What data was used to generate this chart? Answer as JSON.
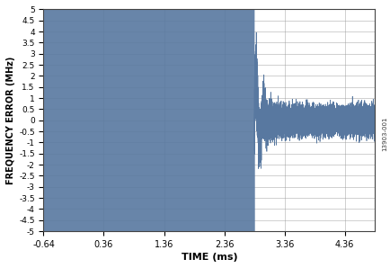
{
  "title": "",
  "xlabel": "TIME (ms)",
  "ylabel": "FREQUENCY ERROR (MHz)",
  "xlim": [
    -0.64,
    4.86
  ],
  "ylim": [
    -5.0,
    5.0
  ],
  "xticks": [
    -0.64,
    0.36,
    1.36,
    2.36,
    3.36,
    4.36
  ],
  "yticks": [
    -5.0,
    -4.5,
    -4.0,
    -3.5,
    -3.0,
    -2.5,
    -2.0,
    -1.5,
    -1.0,
    -0.5,
    0,
    0.5,
    1.0,
    1.5,
    2.0,
    2.5,
    3.0,
    3.5,
    4.0,
    4.5,
    5.0
  ],
  "line_color": "#5878a0",
  "lock_time": 2.86,
  "pre_lock_freq": 400,
  "pre_lock_amplitude": 5.0,
  "post_lock_noise_std": 0.28,
  "post_lock_spike_amp": 2.8,
  "post_lock_spike_decay": 12.0,
  "watermark": "13903-001",
  "background_color": "#ffffff",
  "grid_color": "#999999",
  "n_points_pre": 50000,
  "n_points_post": 20000
}
